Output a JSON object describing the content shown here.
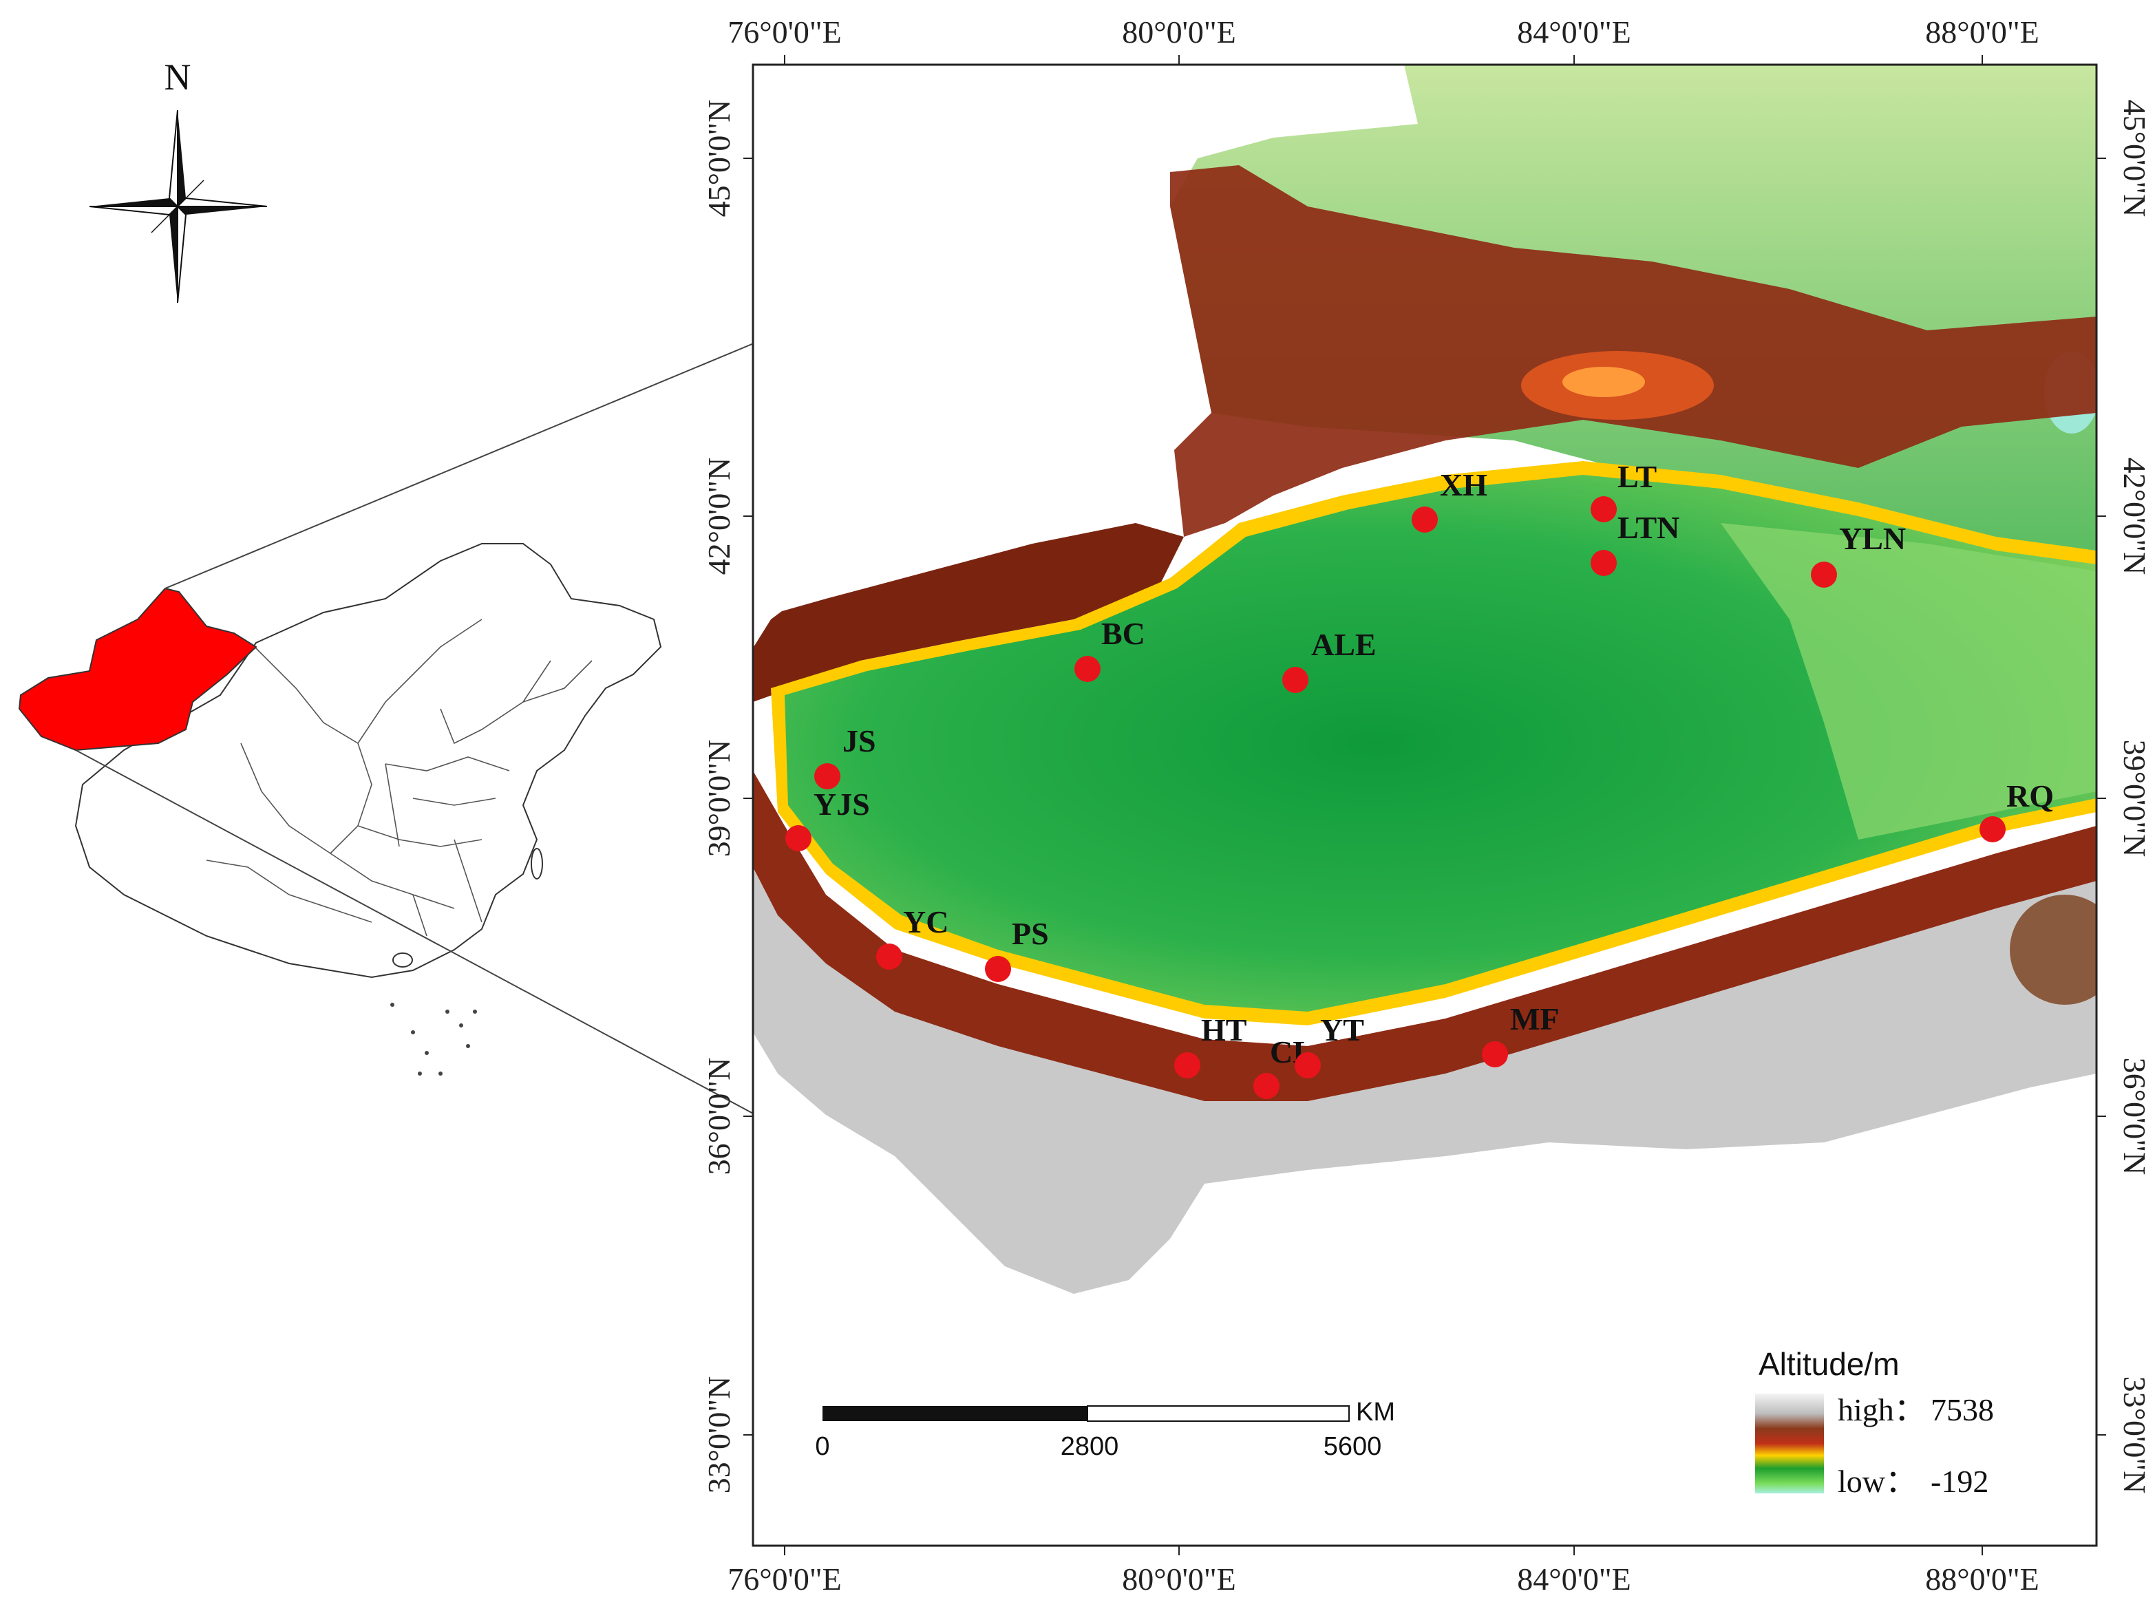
{
  "north_arrow": {
    "label": "N"
  },
  "grid": {
    "lon_labels": [
      "76°0'0\"E",
      "80°0'0\"E",
      "84°0'0\"E",
      "88°0'0\"E"
    ],
    "lat_labels": [
      "45°0'0\"N",
      "42°0'0\"N",
      "39°0'0\"N",
      "36°0'0\"N",
      "33°0'0\"N"
    ]
  },
  "sites": [
    {
      "code": "XH"
    },
    {
      "code": "LT"
    },
    {
      "code": "LTN"
    },
    {
      "code": "YLN"
    },
    {
      "code": "BC"
    },
    {
      "code": "ALE"
    },
    {
      "code": "JS"
    },
    {
      "code": "YJS"
    },
    {
      "code": "RQ"
    },
    {
      "code": "YC"
    },
    {
      "code": "PS"
    },
    {
      "code": "HT"
    },
    {
      "code": "CL"
    },
    {
      "code": "YT"
    },
    {
      "code": "MF"
    }
  ],
  "legend": {
    "title": "Altitude/m",
    "high_label": "high：",
    "high_value": "7538",
    "low_label": "low：",
    "low_value": "-192"
  },
  "scale_bar": {
    "unit": "KM",
    "labels": [
      "0",
      "2800",
      "5600"
    ]
  },
  "colors": {
    "highlight_region": "#ff0000",
    "site_marker": "#e8141b"
  }
}
